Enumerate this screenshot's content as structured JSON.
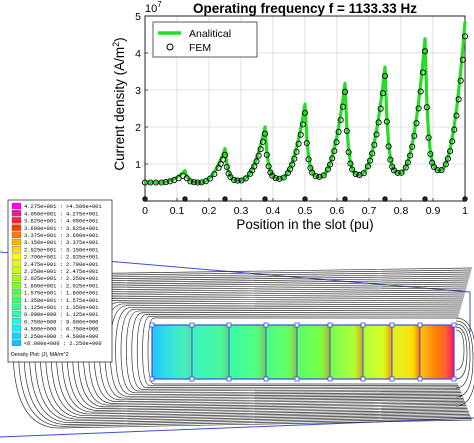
{
  "chart_data": {
    "type": "line",
    "title": "Operating frequency f = 1133.33 Hz",
    "xlabel": "Position in the slot (pu)",
    "ylabel": "Current density (A/m",
    "ylabel_sup": "2",
    "ylabel_close": ")",
    "y_exponent_base": "10",
    "y_exponent_power": "7",
    "xlim": [
      0,
      1
    ],
    "ylim": [
      0,
      5
    ],
    "xticks": [
      0,
      0.1,
      0.2,
      0.3,
      0.4,
      0.5,
      0.6,
      0.7,
      0.8,
      0.9,
      1
    ],
    "xtick_labels": [
      "0",
      "0.1",
      "0.2",
      "0.3",
      "0.4",
      "0.5",
      "0.6",
      "0.7",
      "0.8",
      "0.9",
      "1"
    ],
    "yticks": [
      1,
      2,
      3,
      4,
      5
    ],
    "ytick_labels": [
      "1",
      "2",
      "3",
      "4",
      "5"
    ],
    "grid": true,
    "legend_position": "top-left",
    "x_markers": [
      0,
      0.125,
      0.25,
      0.375,
      0.5,
      0.625,
      0.75,
      0.875,
      1
    ],
    "series": [
      {
        "name": "Analitical",
        "color": "#22dd22",
        "marker": "line",
        "peaks": [
          {
            "x": 0.0,
            "y": 0.5
          },
          {
            "x": 0.125,
            "y": 0.82
          },
          {
            "x": 0.25,
            "y": 1.42
          },
          {
            "x": 0.375,
            "y": 2.0
          },
          {
            "x": 0.5,
            "y": 2.62
          },
          {
            "x": 0.625,
            "y": 3.18
          },
          {
            "x": 0.75,
            "y": 3.62
          },
          {
            "x": 0.875,
            "y": 4.38
          },
          {
            "x": 1.0,
            "y": 4.85
          }
        ],
        "valleys": [
          {
            "x": 0.0,
            "y": 0.5
          },
          {
            "x": 0.125,
            "y": 0.5
          },
          {
            "x": 0.25,
            "y": 0.55
          },
          {
            "x": 0.375,
            "y": 0.6
          },
          {
            "x": 0.5,
            "y": 0.65
          },
          {
            "x": 0.625,
            "y": 0.7
          },
          {
            "x": 0.75,
            "y": 0.75
          },
          {
            "x": 0.875,
            "y": 0.82
          }
        ]
      },
      {
        "name": "FEM",
        "color": "#000000",
        "marker": "circle",
        "peaks": [
          {
            "x": 0.0,
            "y": 0.5
          },
          {
            "x": 0.125,
            "y": 0.72
          },
          {
            "x": 0.25,
            "y": 1.25
          },
          {
            "x": 0.375,
            "y": 1.82
          },
          {
            "x": 0.5,
            "y": 2.38
          },
          {
            "x": 0.625,
            "y": 2.95
          },
          {
            "x": 0.75,
            "y": 3.38
          },
          {
            "x": 0.875,
            "y": 4.05
          },
          {
            "x": 1.0,
            "y": 4.45
          }
        ],
        "valleys": [
          {
            "x": 0.0,
            "y": 0.5
          },
          {
            "x": 0.125,
            "y": 0.5
          },
          {
            "x": 0.25,
            "y": 0.55
          },
          {
            "x": 0.375,
            "y": 0.6
          },
          {
            "x": 0.5,
            "y": 0.65
          },
          {
            "x": 0.625,
            "y": 0.7
          },
          {
            "x": 0.75,
            "y": 0.75
          },
          {
            "x": 0.875,
            "y": 0.82
          }
        ]
      }
    ]
  },
  "fem_plot": {
    "legend_caption": "Density Plot: |J|, MA/m^2",
    "entries": [
      {
        "label": "4.275e+001 : >4.500e+001",
        "color": "#ff00ff"
      },
      {
        "label": "4.050e+001 : 4.275e+001",
        "color": "#ff1493"
      },
      {
        "label": "3.825e+001 : 4.050e+001",
        "color": "#ff1e3c"
      },
      {
        "label": "3.600e+001 : 3.825e+001",
        "color": "#ff3c00"
      },
      {
        "label": "3.375e+001 : 3.600e+001",
        "color": "#ff7800"
      },
      {
        "label": "3.150e+001 : 3.375e+001",
        "color": "#ffb400"
      },
      {
        "label": "2.925e+001 : 3.150e+001",
        "color": "#ffd700"
      },
      {
        "label": "2.700e+001 : 2.925e+001",
        "color": "#ffff00"
      },
      {
        "label": "2.475e+001 : 2.700e+001",
        "color": "#e6ff00"
      },
      {
        "label": "2.250e+001 : 2.475e+001",
        "color": "#c8ff00"
      },
      {
        "label": "2.025e+001 : 2.250e+001",
        "color": "#a0ff00"
      },
      {
        "label": "1.800e+001 : 2.025e+001",
        "color": "#78ff1e"
      },
      {
        "label": "1.575e+001 : 1.800e+001",
        "color": "#50ff3c"
      },
      {
        "label": "1.350e+001 : 1.575e+001",
        "color": "#3cff64"
      },
      {
        "label": "1.125e+001 : 1.350e+001",
        "color": "#32ff8c"
      },
      {
        "label": "9.000e+000 : 1.125e+001",
        "color": "#28ffb4"
      },
      {
        "label": "6.750e+000 : 9.000e+000",
        "color": "#1effdc"
      },
      {
        "label": "4.500e+000 : 6.750e+000",
        "color": "#14f0ff"
      },
      {
        "label": "2.250e+000 : 4.500e+000",
        "color": "#00dcff"
      },
      {
        "label": "<0.000e+000 : 2.250e+000",
        "color": "#00c8ff"
      }
    ]
  }
}
